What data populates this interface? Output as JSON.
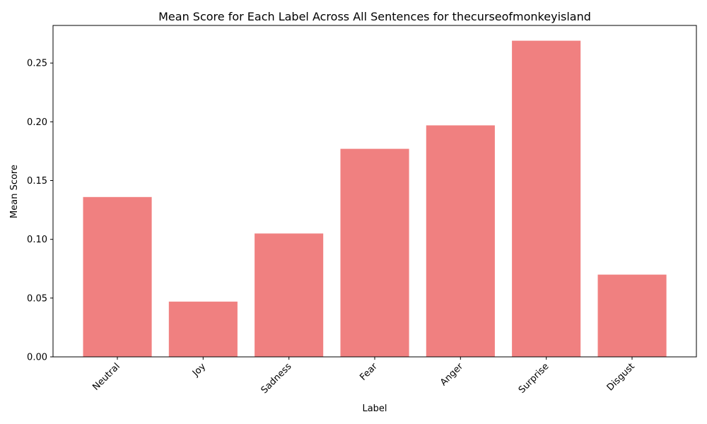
{
  "chart_data": {
    "type": "bar",
    "title": "Mean Score for Each Label Across All Sentences for thecurseofmonkeyisland",
    "xlabel": "Label",
    "ylabel": "Mean Score",
    "categories": [
      "Neutral",
      "Joy",
      "Sadness",
      "Fear",
      "Anger",
      "Surprise",
      "Disgust"
    ],
    "values": [
      0.136,
      0.047,
      0.105,
      0.177,
      0.197,
      0.269,
      0.07
    ],
    "ylim": [
      0,
      0.282
    ],
    "yticks": [
      "0.00",
      "0.05",
      "0.10",
      "0.15",
      "0.20",
      "0.25"
    ],
    "bar_color": "#f08080",
    "grid": false,
    "legend": "none"
  }
}
